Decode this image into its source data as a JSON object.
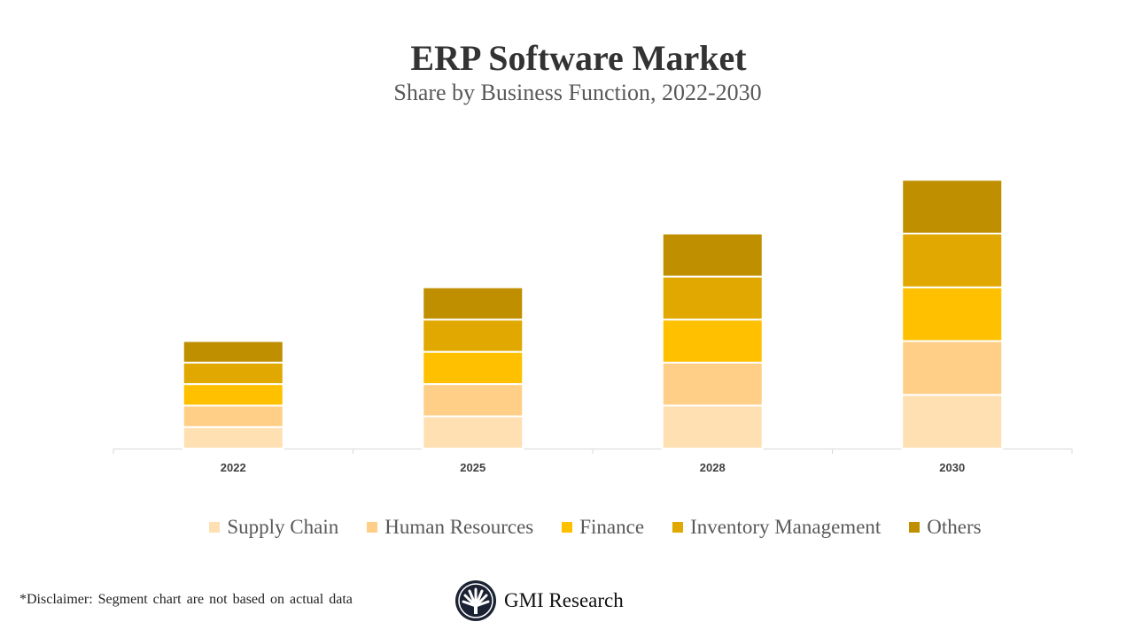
{
  "chart_data": {
    "type": "bar",
    "stacked": true,
    "title": "ERP Software Market",
    "subtitle": "Share by Business Function, 2022-2030",
    "categories": [
      "2022",
      "2025",
      "2028",
      "2030"
    ],
    "series": [
      {
        "name": "Supply Chain",
        "color": "#FFE0B3",
        "values": [
          1,
          1.5,
          2,
          2.5
        ]
      },
      {
        "name": "Human Resources",
        "color": "#FFCF87",
        "values": [
          1,
          1.5,
          2,
          2.5
        ]
      },
      {
        "name": "Finance",
        "color": "#FFC000",
        "values": [
          1,
          1.5,
          2,
          2.5
        ]
      },
      {
        "name": "Inventory Management",
        "color": "#E0A800",
        "values": [
          1,
          1.5,
          2,
          2.5
        ]
      },
      {
        "name": "Others",
        "color": "#BF8F00",
        "values": [
          1,
          1.5,
          2,
          2.5
        ]
      }
    ],
    "xlabel": "",
    "ylabel": "",
    "y_axis_visible": false,
    "grid": false,
    "legend_position": "bottom"
  },
  "footer": {
    "disclaimer": "*Disclaimer:   Segment chart are not based on actual data",
    "brand": "GMI Research"
  }
}
